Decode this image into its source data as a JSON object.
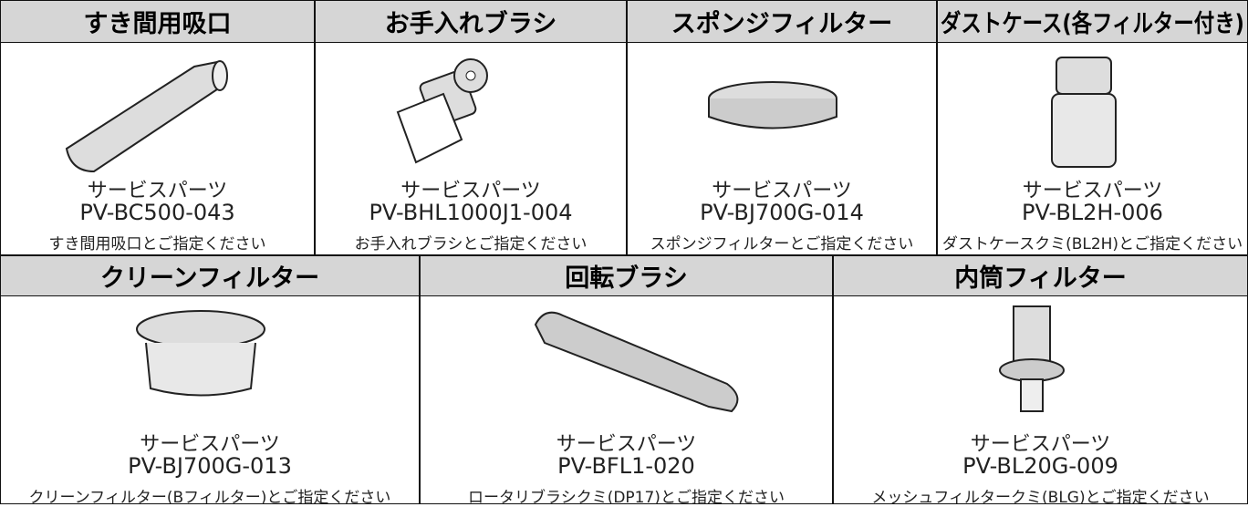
{
  "rows": [
    {
      "items": [
        {
          "title": "すき間用吸口",
          "label": "サービスパーツ",
          "part": "PV-BC500-043",
          "note": "すき間用吸口とご指定ください"
        },
        {
          "title": "お手入れブラシ",
          "label": "サービスパーツ",
          "part": "PV-BHL1000J1-004",
          "note": "お手入れブラシとご指定ください"
        },
        {
          "title": "スポンジフィルター",
          "label": "サービスパーツ",
          "part": "PV-BJ700G-014",
          "note": "スポンジフィルターとご指定ください"
        },
        {
          "title": "ダストケース(各フィルター付き)",
          "label": "サービスパーツ",
          "part": "PV-BL2H-006",
          "note": "ダストケースクミ(BL2H)とご指定ください"
        }
      ]
    },
    {
      "items": [
        {
          "title": "クリーンフィルター",
          "label": "サービスパーツ",
          "part": "PV-BJ700G-013",
          "note": "クリーンフィルター(Bフィルター)とご指定ください"
        },
        {
          "title": "回転ブラシ",
          "label": "サービスパーツ",
          "part": "PV-BFL1-020",
          "note": "ロータリブラシクミ(DP17)とご指定ください"
        },
        {
          "title": "内筒フィルター",
          "label": "サービスパーツ",
          "part": "PV-BL20G-009",
          "note": "メッシュフィルタークミ(BLG)とご指定ください"
        }
      ]
    }
  ]
}
